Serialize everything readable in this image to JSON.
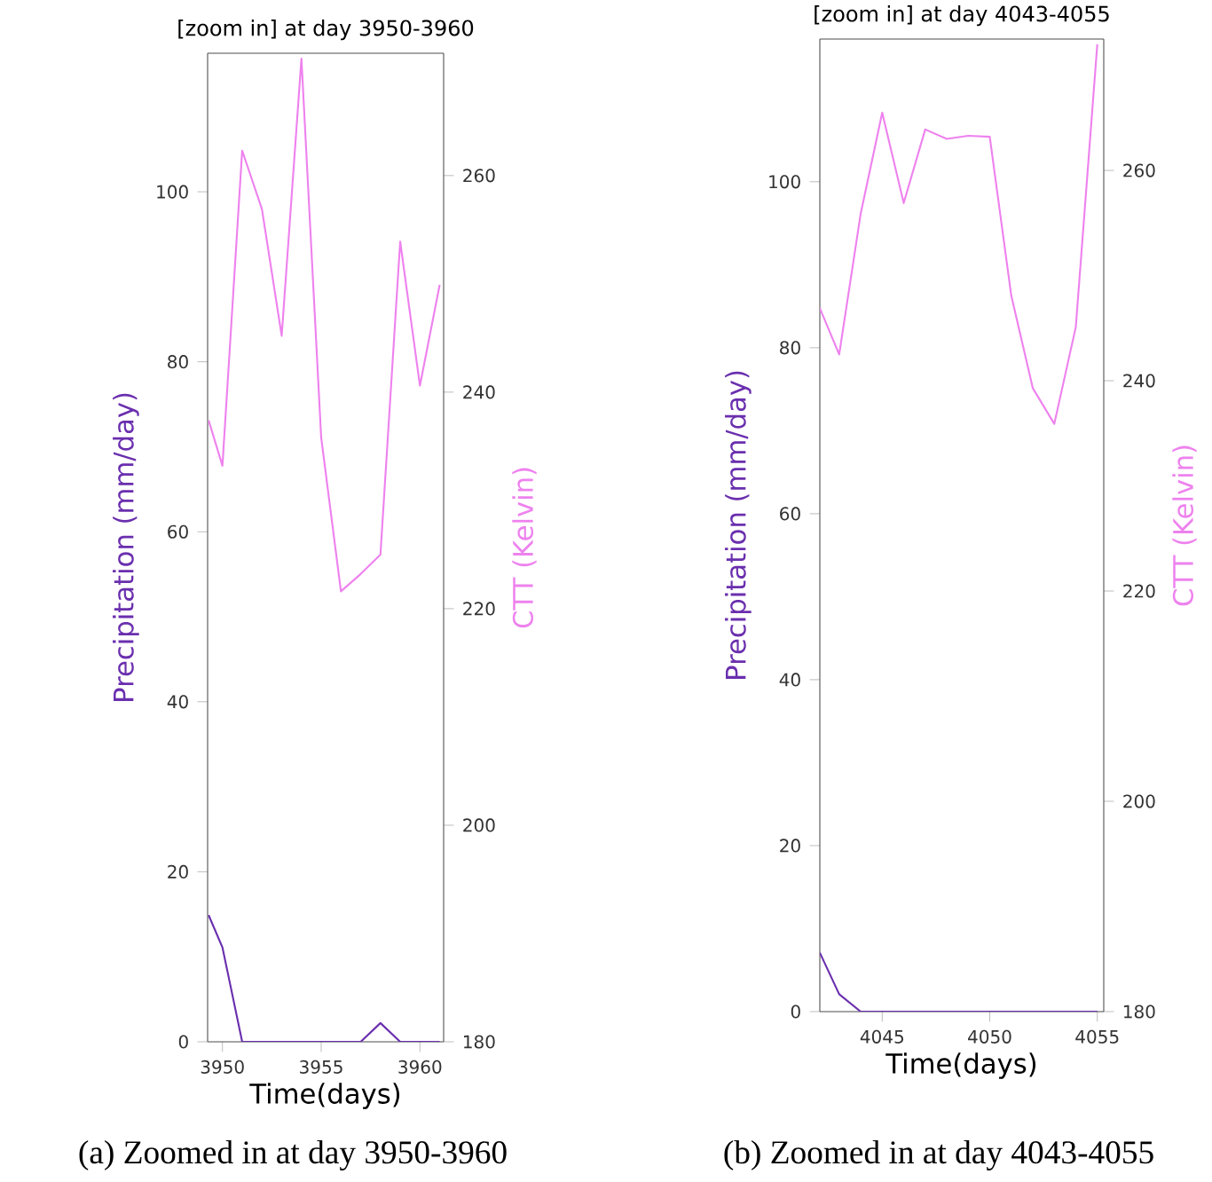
{
  "chart_data": [
    {
      "type": "line",
      "title": "[zoom in] at day 3950-3960",
      "xlabel": "Time(days)",
      "ylabel": "Precipitation (mm/day)",
      "y2label": "CTT (Kelvin)",
      "xlim": [
        3949.25,
        3961.2
      ],
      "xticks": [
        3950,
        3955,
        3960
      ],
      "ylim": [
        0,
        116.3
      ],
      "yticks": [
        0,
        20,
        40,
        60,
        80,
        100
      ],
      "y2lim": [
        180,
        271.3
      ],
      "y2ticks": [
        180,
        200,
        220,
        240,
        260
      ],
      "series": [
        {
          "color": "#6a2fae",
          "x": [
            3949.3,
            3950,
            3951,
            3952,
            3953,
            3954,
            3955,
            3956,
            3957,
            3958,
            3959,
            3960,
            3961
          ],
          "values": [
            14.9,
            11.1,
            0,
            0,
            0,
            0,
            0,
            0,
            0,
            2.2,
            0,
            0,
            0
          ]
        },
        {
          "color": "#ee82ee",
          "axis": "y2",
          "x": [
            3949.3,
            3950,
            3951,
            3952,
            3953,
            3954,
            3955,
            3956,
            3957,
            3958,
            3959,
            3960,
            3961
          ],
          "values": [
            237.4,
            233.2,
            262.3,
            256.9,
            245.2,
            270.8,
            235.8,
            221.6,
            223.2,
            225.0,
            253.9,
            240.6,
            249.9
          ]
        }
      ],
      "annotations": [
        "(a) Zoomed in at day 3950-3960"
      ]
    },
    {
      "type": "line",
      "title": "[zoom in] at day 4043-4055",
      "xlabel": "Time(days)",
      "ylabel": "Precipitation (mm/day)",
      "y2label": "CTT (Kelvin)",
      "xlim": [
        4042.1,
        4055.3
      ],
      "xticks": [
        4045,
        4050,
        4055
      ],
      "ylim": [
        0,
        117.2
      ],
      "yticks": [
        0,
        20,
        40,
        60,
        80,
        100
      ],
      "y2lim": [
        180,
        272.5
      ],
      "y2ticks": [
        180,
        200,
        220,
        240,
        260
      ],
      "series": [
        {
          "color": "#6a2fae",
          "x": [
            4042.1,
            4043,
            4044,
            4045,
            4046,
            4047,
            4048,
            4049,
            4050,
            4051,
            4052,
            4053,
            4054,
            4055
          ],
          "values": [
            7.1,
            2.1,
            0,
            0,
            0,
            0,
            0,
            0,
            0,
            0,
            0,
            0,
            0,
            0
          ]
        },
        {
          "color": "#ee82ee",
          "axis": "y2",
          "x": [
            4042.1,
            4043,
            4044,
            4045,
            4046,
            4047,
            4048,
            4049,
            4050,
            4051,
            4052,
            4053,
            4054,
            4055
          ],
          "values": [
            246.9,
            242.5,
            255.9,
            265.5,
            256.9,
            263.9,
            263.0,
            263.3,
            263.2,
            248.1,
            239.3,
            235.9,
            245.1,
            272.0
          ]
        }
      ],
      "annotations": [
        "(b) Zoomed in at day 4043-4055"
      ]
    }
  ]
}
